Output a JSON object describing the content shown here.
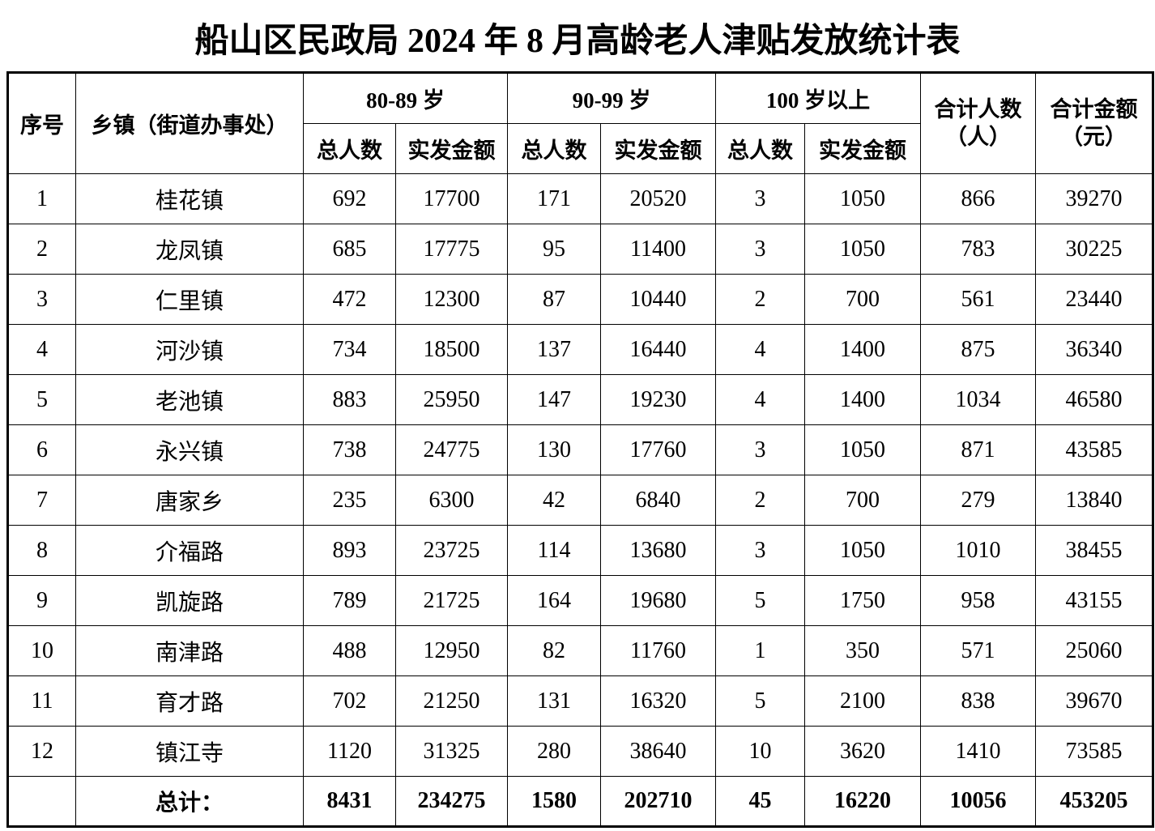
{
  "title": "船山区民政局 2024 年 8 月高龄老人津贴发放统计表",
  "table": {
    "header": {
      "col_seq": "序号",
      "col_town": "乡镇（街道办事处）",
      "group_80_89": "80-89 岁",
      "group_90_99": "90-99 岁",
      "group_100": "100 岁以上",
      "sub_total_people": "总人数",
      "sub_amount": "实发金额",
      "col_total_people_line1": "合计人数",
      "col_total_people_line2": "（人）",
      "col_total_amount_line1": "合计金额",
      "col_total_amount_line2": "（元）"
    },
    "rows": [
      {
        "seq": "1",
        "town": "桂花镇",
        "p80": "692",
        "a80": "17700",
        "p90": "171",
        "a90": "20520",
        "p100": "3",
        "a100": "1050",
        "tp": "866",
        "ta": "39270"
      },
      {
        "seq": "2",
        "town": "龙凤镇",
        "p80": "685",
        "a80": "17775",
        "p90": "95",
        "a90": "11400",
        "p100": "3",
        "a100": "1050",
        "tp": "783",
        "ta": "30225"
      },
      {
        "seq": "3",
        "town": "仁里镇",
        "p80": "472",
        "a80": "12300",
        "p90": "87",
        "a90": "10440",
        "p100": "2",
        "a100": "700",
        "tp": "561",
        "ta": "23440"
      },
      {
        "seq": "4",
        "town": "河沙镇",
        "p80": "734",
        "a80": "18500",
        "p90": "137",
        "a90": "16440",
        "p100": "4",
        "a100": "1400",
        "tp": "875",
        "ta": "36340"
      },
      {
        "seq": "5",
        "town": "老池镇",
        "p80": "883",
        "a80": "25950",
        "p90": "147",
        "a90": "19230",
        "p100": "4",
        "a100": "1400",
        "tp": "1034",
        "ta": "46580"
      },
      {
        "seq": "6",
        "town": "永兴镇",
        "p80": "738",
        "a80": "24775",
        "p90": "130",
        "a90": "17760",
        "p100": "3",
        "a100": "1050",
        "tp": "871",
        "ta": "43585"
      },
      {
        "seq": "7",
        "town": "唐家乡",
        "p80": "235",
        "a80": "6300",
        "p90": "42",
        "a90": "6840",
        "p100": "2",
        "a100": "700",
        "tp": "279",
        "ta": "13840"
      },
      {
        "seq": "8",
        "town": "介福路",
        "p80": "893",
        "a80": "23725",
        "p90": "114",
        "a90": "13680",
        "p100": "3",
        "a100": "1050",
        "tp": "1010",
        "ta": "38455"
      },
      {
        "seq": "9",
        "town": "凯旋路",
        "p80": "789",
        "a80": "21725",
        "p90": "164",
        "a90": "19680",
        "p100": "5",
        "a100": "1750",
        "tp": "958",
        "ta": "43155"
      },
      {
        "seq": "10",
        "town": "南津路",
        "p80": "488",
        "a80": "12950",
        "p90": "82",
        "a90": "11760",
        "p100": "1",
        "a100": "350",
        "tp": "571",
        "ta": "25060"
      },
      {
        "seq": "11",
        "town": "育才路",
        "p80": "702",
        "a80": "21250",
        "p90": "131",
        "a90": "16320",
        "p100": "5",
        "a100": "2100",
        "tp": "838",
        "ta": "39670"
      },
      {
        "seq": "12",
        "town": "镇江寺",
        "p80": "1120",
        "a80": "31325",
        "p90": "280",
        "a90": "38640",
        "p100": "10",
        "a100": "3620",
        "tp": "1410",
        "ta": "73585"
      }
    ],
    "total": {
      "label": "总计：",
      "p80": "8431",
      "a80": "234275",
      "p90": "1580",
      "a90": "202710",
      "p100": "45",
      "a100": "16220",
      "tp": "10056",
      "ta": "453205"
    }
  }
}
